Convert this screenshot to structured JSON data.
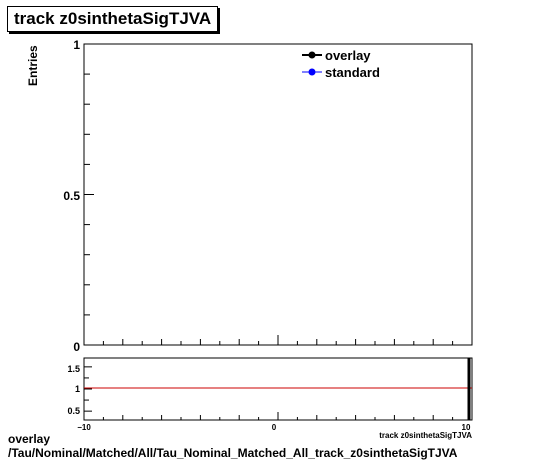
{
  "title": "track z0sinthetaSigTJVA",
  "footer": {
    "line1": "overlay",
    "line2": "/Tau/Nominal/Matched/All/Tau_Nominal_Matched_All_track_z0sinthetaSigTJVA"
  },
  "colors": {
    "overlay": "#000000",
    "standard": "#0000ff",
    "ratio_line": "#cc0000"
  },
  "chart_data": [
    {
      "type": "line",
      "title": "track z0sinthetaSigTJVA",
      "xlabel": "track z0sinthetaSigTJVA",
      "ylabel": "Entries",
      "xlim": [
        -10,
        10
      ],
      "ylim": [
        0,
        1
      ],
      "yticks": [
        "0",
        "0.5",
        "1"
      ],
      "legend_position": "top-right",
      "series": [
        {
          "name": "overlay",
          "x": [],
          "y": []
        },
        {
          "name": "standard",
          "x": [],
          "y": []
        }
      ]
    },
    {
      "type": "line",
      "xlim": [
        -10,
        10
      ],
      "ylim": [
        0.3,
        1.7
      ],
      "xticks": [
        "−10",
        "0",
        "10"
      ],
      "yticks": [
        "0.5",
        "1",
        "1.5"
      ],
      "reference_line": 1,
      "xlabel": "track z0sinthetaSigTJVA",
      "series": []
    }
  ]
}
